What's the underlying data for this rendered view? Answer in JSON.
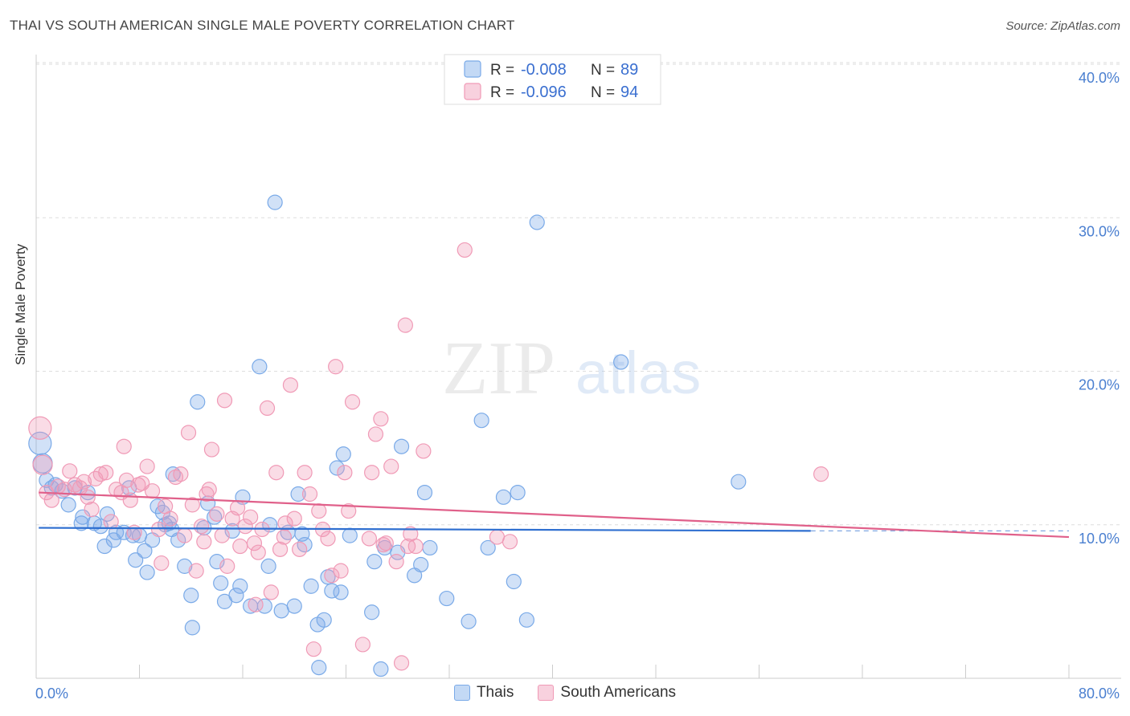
{
  "title": "THAI VS SOUTH AMERICAN SINGLE MALE POVERTY CORRELATION CHART",
  "source": "Source: ZipAtlas.com",
  "watermark": {
    "zip": "ZIP",
    "atlas": "atlas"
  },
  "chart_data": {
    "type": "scatter",
    "ylabel": "Single Male Poverty",
    "xlim": [
      0,
      80
    ],
    "ylim": [
      0,
      40
    ],
    "x_tick_labels": [
      "0.0%",
      "80.0%"
    ],
    "y_tick_labels": [
      "10.0%",
      "20.0%",
      "30.0%",
      "40.0%"
    ],
    "y_ticks": [
      10,
      20,
      30,
      40
    ],
    "grid": "horizontal dashed",
    "legend_position": "top-center",
    "series": [
      {
        "name": "Thais",
        "color": "#7aaae8",
        "line_color": "#2f6fd0",
        "r": "-0.008",
        "n": "89",
        "trend": {
          "x0": 0.2,
          "y0": 9.8,
          "x1": 60,
          "y1": 9.6,
          "dash_to": 80,
          "dash_y": 9.6
        },
        "points": [
          [
            0.3,
            15.3,
            14
          ],
          [
            0.5,
            14,
            12
          ],
          [
            0.8,
            12.9,
            9
          ],
          [
            1.2,
            12.4,
            9
          ],
          [
            1.5,
            12.6,
            9
          ],
          [
            2,
            12.2,
            9
          ],
          [
            2.5,
            11.3,
            9
          ],
          [
            3,
            12.4,
            9
          ],
          [
            3.5,
            10.1,
            9
          ],
          [
            3.6,
            10.5,
            9
          ],
          [
            4,
            12.1,
            9
          ],
          [
            4.5,
            10.1,
            9
          ],
          [
            5,
            9.9,
            9
          ],
          [
            5.3,
            8.6,
            9
          ],
          [
            5.5,
            10.7,
            9
          ],
          [
            6,
            9,
            9
          ],
          [
            6.2,
            9.5,
            9
          ],
          [
            6.8,
            9.5,
            9
          ],
          [
            7.2,
            12.4,
            9
          ],
          [
            7.7,
            7.7,
            9
          ],
          [
            8,
            9.3,
            9
          ],
          [
            8.4,
            8.3,
            9
          ],
          [
            8.6,
            6.9,
            9
          ],
          [
            9,
            9,
            9
          ],
          [
            9.4,
            11.2,
            9
          ],
          [
            9.8,
            10.8,
            9
          ],
          [
            10,
            10,
            9
          ],
          [
            10.3,
            10.1,
            9
          ],
          [
            10.6,
            13.3,
            9
          ],
          [
            11,
            9,
            9
          ],
          [
            11.5,
            7.3,
            9
          ],
          [
            12,
            5.4,
            9
          ],
          [
            12.1,
            3.3,
            9
          ],
          [
            12.5,
            18,
            9
          ],
          [
            13,
            9.8,
            9
          ],
          [
            13.3,
            11.4,
            9
          ],
          [
            13.8,
            10.5,
            9
          ],
          [
            14,
            7.6,
            9
          ],
          [
            14.3,
            6.2,
            9
          ],
          [
            14.6,
            5,
            9
          ],
          [
            15.2,
            9.6,
            9
          ],
          [
            15.5,
            5.4,
            9
          ],
          [
            15.8,
            6,
            9
          ],
          [
            16,
            11.8,
            9
          ],
          [
            16.6,
            4.7,
            9
          ],
          [
            17.3,
            20.3,
            9
          ],
          [
            17.7,
            4.7,
            9
          ],
          [
            18,
            7.3,
            9
          ],
          [
            18.1,
            10,
            9
          ],
          [
            18.5,
            31,
            9
          ],
          [
            19,
            4.4,
            9
          ],
          [
            19.5,
            9.5,
            9
          ],
          [
            20,
            4.7,
            9
          ],
          [
            20.3,
            12,
            9
          ],
          [
            20.6,
            9.4,
            9
          ],
          [
            20.8,
            8.7,
            9
          ],
          [
            21.3,
            6,
            9
          ],
          [
            21.8,
            3.5,
            9
          ],
          [
            21.9,
            0.7,
            9
          ],
          [
            22.3,
            3.8,
            9
          ],
          [
            22.6,
            6.6,
            9
          ],
          [
            22.9,
            5.7,
            9
          ],
          [
            23.3,
            13.7,
            9
          ],
          [
            23.6,
            5.6,
            9
          ],
          [
            23.8,
            14.6,
            9
          ],
          [
            24.3,
            9.3,
            9
          ],
          [
            26,
            4.3,
            9
          ],
          [
            26.2,
            7.6,
            9
          ],
          [
            26.7,
            0.6,
            9
          ],
          [
            27,
            8.5,
            9
          ],
          [
            28,
            8.2,
            9
          ],
          [
            28.3,
            15.1,
            9
          ],
          [
            29.3,
            6.7,
            9
          ],
          [
            29.8,
            7.4,
            9
          ],
          [
            30.1,
            12.1,
            9
          ],
          [
            30.5,
            8.5,
            9
          ],
          [
            31.8,
            5.2,
            9
          ],
          [
            33.5,
            3.7,
            9
          ],
          [
            34.5,
            16.8,
            9
          ],
          [
            35,
            8.5,
            9
          ],
          [
            36.2,
            11.8,
            9
          ],
          [
            37,
            6.3,
            9
          ],
          [
            37.3,
            12.1,
            9
          ],
          [
            38,
            3.8,
            9
          ],
          [
            38.8,
            29.7,
            9
          ],
          [
            45.3,
            20.6,
            9
          ],
          [
            54.4,
            12.8,
            9
          ],
          [
            10.5,
            9.7,
            9
          ],
          [
            7.5,
            9.3,
            9
          ]
        ]
      },
      {
        "name": "South Americans",
        "color": "#f09ab6",
        "line_color": "#e0608a",
        "r": "-0.096",
        "n": "94",
        "trend": {
          "x0": 0.2,
          "y0": 12.1,
          "x1": 80,
          "y1": 9.2
        },
        "points": [
          [
            0.3,
            16.3,
            14
          ],
          [
            0.5,
            13.9,
            12
          ],
          [
            0.8,
            12.1,
            9
          ],
          [
            1.2,
            11.6,
            9
          ],
          [
            1.7,
            12.5,
            9
          ],
          [
            2.2,
            12.3,
            9
          ],
          [
            2.6,
            13.5,
            9
          ],
          [
            3,
            12.6,
            9
          ],
          [
            3.4,
            12.4,
            9
          ],
          [
            3.7,
            12.8,
            9
          ],
          [
            4,
            11.8,
            9
          ],
          [
            4.3,
            11,
            9
          ],
          [
            4.6,
            13,
            9
          ],
          [
            5,
            13.3,
            9
          ],
          [
            5.4,
            13.4,
            9
          ],
          [
            5.8,
            10.2,
            9
          ],
          [
            6.2,
            12.3,
            9
          ],
          [
            6.6,
            12.1,
            9
          ],
          [
            6.8,
            15.1,
            9
          ],
          [
            7,
            12.9,
            9
          ],
          [
            7.3,
            11.6,
            9
          ],
          [
            7.6,
            9.5,
            9
          ],
          [
            7.9,
            12.6,
            9
          ],
          [
            8.2,
            12.7,
            9
          ],
          [
            8.6,
            13.8,
            9
          ],
          [
            9,
            12.2,
            9
          ],
          [
            9.5,
            9.7,
            9
          ],
          [
            9.7,
            7.5,
            9
          ],
          [
            10,
            11.2,
            9
          ],
          [
            10.4,
            10.4,
            9
          ],
          [
            10.8,
            13.1,
            9
          ],
          [
            11.2,
            13.3,
            9
          ],
          [
            11.5,
            9.3,
            9
          ],
          [
            11.8,
            16,
            9
          ],
          [
            12.1,
            11.3,
            9
          ],
          [
            12.4,
            7,
            9
          ],
          [
            12.8,
            9.9,
            9
          ],
          [
            13.2,
            12,
            9
          ],
          [
            13.4,
            12.3,
            9
          ],
          [
            13.6,
            14.9,
            9
          ],
          [
            14,
            10.7,
            9
          ],
          [
            14.4,
            9.3,
            9
          ],
          [
            14.6,
            18.1,
            9
          ],
          [
            14.8,
            7.3,
            9
          ],
          [
            15.2,
            10.4,
            9
          ],
          [
            15.6,
            11.1,
            9
          ],
          [
            15.8,
            8.6,
            9
          ],
          [
            16.2,
            9.9,
            9
          ],
          [
            16.6,
            10.5,
            9
          ],
          [
            16.9,
            8.8,
            9
          ],
          [
            17.2,
            8.2,
            9
          ],
          [
            17.5,
            9.7,
            9
          ],
          [
            17.9,
            17.6,
            9
          ],
          [
            18.2,
            5.6,
            9
          ],
          [
            18.6,
            13.4,
            9
          ],
          [
            18.9,
            8.4,
            9
          ],
          [
            19.3,
            10.1,
            9
          ],
          [
            19.7,
            19.1,
            9
          ],
          [
            20,
            10.4,
            9
          ],
          [
            20.4,
            8.4,
            9
          ],
          [
            20.8,
            13.4,
            9
          ],
          [
            21.2,
            12,
            9
          ],
          [
            21.5,
            1.9,
            9
          ],
          [
            21.9,
            10.9,
            9
          ],
          [
            22.2,
            9.7,
            9
          ],
          [
            22.6,
            9.1,
            9
          ],
          [
            22.9,
            6.7,
            9
          ],
          [
            23.2,
            20.3,
            9
          ],
          [
            23.6,
            7,
            9
          ],
          [
            23.9,
            13.4,
            9
          ],
          [
            24.2,
            10.9,
            9
          ],
          [
            24.5,
            18,
            9
          ],
          [
            25.3,
            2.2,
            9
          ],
          [
            25.8,
            9.1,
            9
          ],
          [
            26,
            13.4,
            9
          ],
          [
            26.3,
            15.9,
            9
          ],
          [
            26.7,
            16.9,
            9
          ],
          [
            27.1,
            8.8,
            9
          ],
          [
            27.5,
            13.8,
            9
          ],
          [
            27.9,
            7.6,
            9
          ],
          [
            28.3,
            1,
            9
          ],
          [
            28.6,
            23,
            9
          ],
          [
            29,
            9.4,
            9
          ],
          [
            29.4,
            8.6,
            9
          ],
          [
            30,
            14.8,
            9
          ],
          [
            33.2,
            27.9,
            9
          ],
          [
            35.7,
            9.2,
            9
          ],
          [
            36.7,
            8.9,
            9
          ],
          [
            60.8,
            13.3,
            9
          ],
          [
            19.2,
            9.2,
            9
          ],
          [
            17,
            4.8,
            9
          ],
          [
            28.8,
            8.6,
            9
          ],
          [
            26.9,
            8.7,
            9
          ],
          [
            13,
            8.9,
            9
          ]
        ]
      }
    ]
  },
  "legend_top": [
    {
      "r_label": "R =",
      "r_value": "-0.008",
      "n_label": "N =",
      "n_value": "89"
    },
    {
      "r_label": "R =",
      "r_value": "-0.096",
      "n_label": "N =",
      "n_value": "94"
    }
  ],
  "legend_bottom": [
    {
      "label": "Thais",
      "color": "#7aaae8"
    },
    {
      "label": "South Americans",
      "color": "#f09ab6"
    }
  ]
}
